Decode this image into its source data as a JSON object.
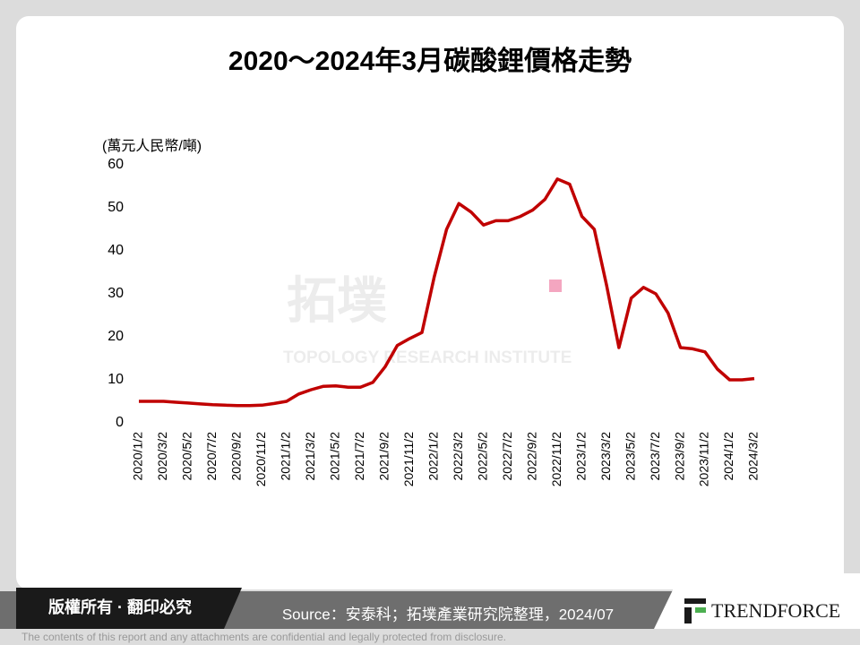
{
  "chart_data": {
    "type": "line",
    "title": "2020～2024年3月碳酸鋰價格走勢",
    "y_label": "(萬元人民幣/噸)",
    "categories": [
      "2020/1/2",
      null,
      "2020/3/2",
      null,
      "2020/5/2",
      null,
      "2020/7/2",
      null,
      "2020/9/2",
      null,
      "2020/11/2",
      null,
      "2021/1/2",
      null,
      "2021/3/2",
      null,
      "2021/5/2",
      null,
      "2021/7/2",
      null,
      "2021/9/2",
      null,
      "2021/11/2",
      null,
      "2022/1/2",
      null,
      "2022/3/2",
      null,
      "2022/5/2",
      null,
      "2022/7/2",
      null,
      "2022/9/2",
      null,
      "2022/11/2",
      null,
      "2023/1/2",
      null,
      "2023/3/2",
      null,
      "2023/5/2",
      null,
      "2023/7/2",
      null,
      "2023/9/2",
      null,
      "2023/11/2",
      null,
      "2024/1/2",
      null,
      "2024/3/2"
    ],
    "series": [
      {
        "name": "碳酸鋰價格",
        "color": "#c00000",
        "values": [
          5,
          5,
          5,
          4.8,
          4.6,
          4.4,
          4.2,
          4.1,
          4,
          4,
          4.1,
          4.5,
          5,
          6.7,
          7.7,
          8.5,
          8.6,
          8.3,
          8.3,
          9.4,
          13,
          18,
          19.6,
          21,
          34,
          45,
          51,
          49,
          46,
          47,
          47,
          48,
          49.5,
          52,
          56.7,
          55.5,
          48,
          45,
          32,
          17.5,
          29,
          31.5,
          30,
          25.5,
          17.5,
          17.2,
          16.5,
          12.5,
          10,
          10,
          10.3
        ]
      }
    ],
    "ylim": [
      0,
      60
    ],
    "yticks": [
      0,
      10,
      20,
      30,
      40,
      50,
      60
    ],
    "grid": false
  },
  "watermark": {
    "name": "拓墣",
    "subtitle": "TOPOLOGY RESEARCH INSTITUTE"
  },
  "footer": {
    "copyright": "版權所有 · 翻印必究",
    "source": "Source：安泰科；拓墣產業研究院整理，2024/07",
    "brand": "TRENDFORCE",
    "disclaimer": "The contents of this report and any attachments are confidential and legally protected from disclosure."
  }
}
